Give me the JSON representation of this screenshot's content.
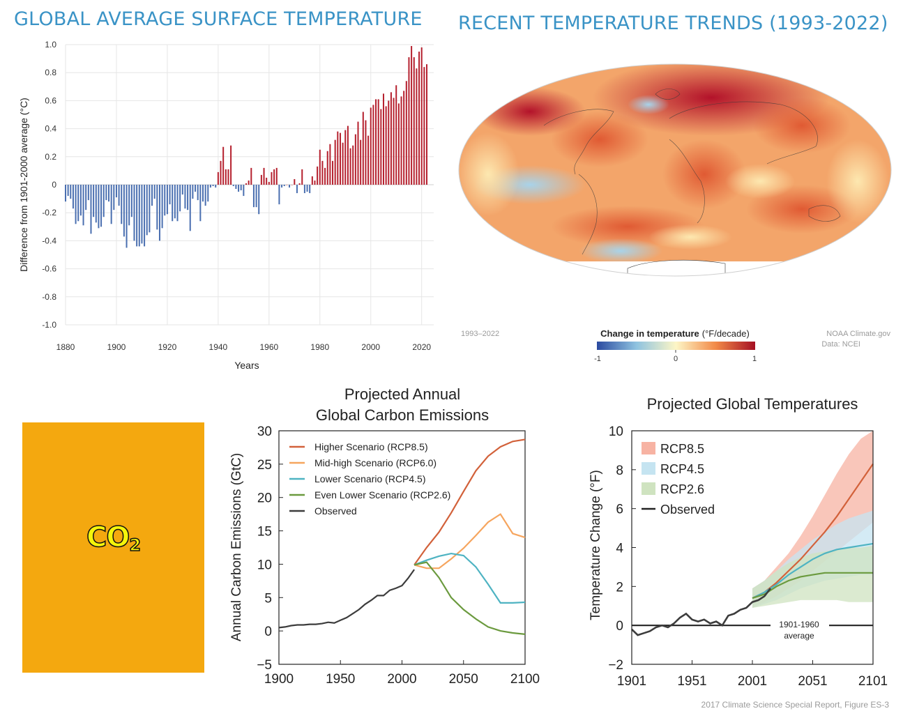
{
  "panel1": {
    "title": "GLOBAL AVERAGE SURFACE TEMPERATURE",
    "ylabel": "Difference from 1901-2000 average (°C)",
    "xlabel": "Years",
    "yticks": [
      "1.0",
      "0.8",
      "0.6",
      "0.4",
      "0.2",
      "0",
      "-0.2",
      "-0.4",
      "-0.6",
      "-0.8",
      "-1.0"
    ],
    "xticks": [
      "1880",
      "1900",
      "1920",
      "1940",
      "1960",
      "1980",
      "2000",
      "2020"
    ],
    "colors": {
      "positive": "#b5202e",
      "negative": "#4a6fb0"
    }
  },
  "panel2": {
    "title": "RECENT TEMPERATURE TRENDS (1993-2022)",
    "period": "1993–2022",
    "legend_title": "Change in temperature",
    "legend_unit": "(°F/decade)",
    "legend_min": "-1",
    "legend_mid": "0",
    "legend_max": "1",
    "credit1": "NOAA Climate.gov",
    "credit2": "Data: NCEI"
  },
  "co2": {
    "label": "CO",
    "subscript": "2",
    "background": "#f4a80f"
  },
  "panel3": {
    "title_line1": "Projected Annual",
    "title_line2": "Global Carbon Emissions",
    "ylabel": "Annual Carbon Emissions (GtC)",
    "yticks": [
      "30",
      "25",
      "20",
      "15",
      "10",
      "5",
      "0",
      "−5"
    ],
    "xticks": [
      "1900",
      "1950",
      "2000",
      "2050",
      "2100"
    ],
    "legend": [
      "Higher Scenario (RCP8.5)",
      "Mid-high Scenario (RCP6.0)",
      "Lower Scenario (RCP4.5)",
      "Even Lower Scenario (RCP2.6)",
      "Observed"
    ]
  },
  "panel4": {
    "title": "Projected Global Temperatures",
    "ylabel": "Temperature Change (°F)",
    "yticks": [
      "10",
      "8",
      "6",
      "4",
      "2",
      "0",
      "−2"
    ],
    "xticks": [
      "1901",
      "1951",
      "2001",
      "2051",
      "2101"
    ],
    "legend": [
      "RCP8.5",
      "RCP4.5",
      "RCP2.6",
      "Observed"
    ],
    "baseline_label_1": "1901-1960",
    "baseline_label_2": "average",
    "source": "2017 Climate Science Special Report, Figure ES-3"
  },
  "chart_data": [
    {
      "type": "bar",
      "title": "GLOBAL AVERAGE SURFACE TEMPERATURE",
      "xlabel": "Years",
      "ylabel": "Difference from 1901-2000 average (°C)",
      "ylim": [
        -1.0,
        1.0
      ],
      "xlim": [
        1880,
        2022
      ],
      "x_start": 1880,
      "values": [
        -0.12,
        -0.08,
        -0.1,
        -0.17,
        -0.28,
        -0.26,
        -0.22,
        -0.29,
        -0.18,
        -0.11,
        -0.35,
        -0.23,
        -0.27,
        -0.31,
        -0.3,
        -0.23,
        -0.11,
        -0.12,
        -0.28,
        -0.18,
        -0.09,
        -0.15,
        -0.28,
        -0.37,
        -0.45,
        -0.29,
        -0.23,
        -0.4,
        -0.44,
        -0.44,
        -0.42,
        -0.44,
        -0.36,
        -0.34,
        -0.15,
        -0.1,
        -0.32,
        -0.4,
        -0.31,
        -0.22,
        -0.21,
        -0.14,
        -0.26,
        -0.24,
        -0.26,
        -0.19,
        -0.07,
        -0.17,
        -0.18,
        -0.33,
        -0.1,
        -0.05,
        -0.11,
        -0.26,
        -0.12,
        -0.15,
        -0.12,
        -0.02,
        -0.01,
        -0.02,
        0.09,
        0.17,
        0.27,
        0.11,
        0.11,
        0.28,
        -0.01,
        -0.03,
        -0.05,
        -0.04,
        -0.08,
        0.01,
        0.03,
        0.12,
        -0.16,
        -0.16,
        -0.21,
        0.07,
        0.12,
        0.05,
        0.02,
        0.09,
        0.11,
        0.12,
        -0.14,
        -0.02,
        -0.01,
        0.0,
        -0.02,
        0.0,
        0.04,
        -0.06,
        0.01,
        0.11,
        -0.06,
        -0.05,
        -0.06,
        0.06,
        0.03,
        0.13,
        0.25,
        0.17,
        0.12,
        0.24,
        0.29,
        0.17,
        0.32,
        0.38,
        0.37,
        0.3,
        0.39,
        0.42,
        0.26,
        0.28,
        0.36,
        0.45,
        0.32,
        0.52,
        0.46,
        0.35,
        0.55,
        0.57,
        0.61,
        0.61,
        0.54,
        0.65,
        0.56,
        0.6,
        0.66,
        0.62,
        0.71,
        0.58,
        0.63,
        0.67,
        0.74,
        0.91,
        0.99,
        0.91,
        0.83,
        0.95,
        0.98,
        0.84,
        0.86
      ]
    },
    {
      "type": "line",
      "title": "Projected Annual Global Carbon Emissions",
      "xlabel": "",
      "ylabel": "Annual Carbon Emissions (GtC)",
      "xlim": [
        1900,
        2100
      ],
      "ylim": [
        -5,
        30
      ],
      "series": [
        {
          "name": "Observed",
          "color": "#3c3c3c",
          "x": [
            1900,
            1905,
            1910,
            1915,
            1920,
            1925,
            1930,
            1935,
            1940,
            1945,
            1950,
            1955,
            1960,
            1965,
            1970,
            1975,
            1980,
            1985,
            1990,
            1995,
            2000,
            2005,
            2010
          ],
          "y": [
            0.5,
            0.6,
            0.8,
            0.9,
            0.9,
            1.0,
            1.0,
            1.1,
            1.3,
            1.2,
            1.6,
            2.0,
            2.6,
            3.2,
            4.0,
            4.6,
            5.3,
            5.3,
            6.1,
            6.4,
            6.8,
            7.9,
            9.2
          ]
        },
        {
          "name": "Higher Scenario (RCP8.5)",
          "color": "#d2613a",
          "x": [
            2010,
            2020,
            2030,
            2040,
            2050,
            2060,
            2070,
            2080,
            2090,
            2100
          ],
          "y": [
            9.9,
            12.5,
            14.8,
            17.7,
            20.9,
            24.0,
            26.2,
            27.6,
            28.4,
            28.7
          ]
        },
        {
          "name": "Mid-high Scenario (RCP6.0)",
          "color": "#f6a55e",
          "x": [
            2010,
            2020,
            2030,
            2040,
            2050,
            2060,
            2070,
            2080,
            2090,
            2100
          ],
          "y": [
            9.9,
            9.4,
            9.4,
            10.8,
            12.4,
            14.3,
            16.3,
            17.5,
            14.6,
            14.0
          ]
        },
        {
          "name": "Lower Scenario (RCP4.5)",
          "color": "#4eb3c2",
          "x": [
            2010,
            2020,
            2030,
            2040,
            2050,
            2060,
            2070,
            2080,
            2090,
            2100
          ],
          "y": [
            9.9,
            10.6,
            11.2,
            11.6,
            11.3,
            9.6,
            7.0,
            4.2,
            4.2,
            4.3
          ]
        },
        {
          "name": "Even Lower Scenario (RCP2.6)",
          "color": "#6b9a3e",
          "x": [
            2010,
            2020,
            2030,
            2040,
            2050,
            2060,
            2070,
            2080,
            2090,
            2100
          ],
          "y": [
            9.9,
            10.3,
            8.0,
            5.0,
            3.2,
            1.8,
            0.6,
            0.0,
            -0.3,
            -0.5
          ]
        }
      ]
    },
    {
      "type": "area",
      "title": "Projected Global Temperatures",
      "xlabel": "",
      "ylabel": "Temperature Change (°F)",
      "xlim": [
        1901,
        2101
      ],
      "ylim": [
        -2,
        10
      ],
      "baseline": 0,
      "series": [
        {
          "name": "RCP8.5",
          "color": "#d2613a",
          "band_color": "#f7b3a3",
          "x": [
            2001,
            2011,
            2021,
            2031,
            2041,
            2051,
            2061,
            2071,
            2081,
            2091,
            2101
          ],
          "y": [
            1.4,
            1.7,
            2.2,
            2.8,
            3.4,
            4.1,
            4.8,
            5.6,
            6.5,
            7.4,
            8.3
          ],
          "low": [
            0.9,
            1.2,
            1.5,
            1.9,
            2.3,
            2.8,
            3.3,
            3.8,
            4.3,
            4.8,
            5.3
          ],
          "high": [
            1.9,
            2.3,
            3.0,
            3.7,
            4.6,
            5.6,
            6.7,
            7.8,
            8.8,
            9.6,
            10.0
          ]
        },
        {
          "name": "RCP4.5",
          "color": "#4eb3c2",
          "band_color": "#c5e4f1",
          "x": [
            2001,
            2011,
            2021,
            2031,
            2041,
            2051,
            2061,
            2071,
            2081,
            2091,
            2101
          ],
          "y": [
            1.4,
            1.7,
            2.1,
            2.6,
            3.0,
            3.4,
            3.7,
            3.9,
            4.0,
            4.1,
            4.2
          ],
          "low": [
            0.9,
            1.1,
            1.3,
            1.6,
            1.9,
            2.1,
            2.3,
            2.4,
            2.5,
            2.6,
            2.6
          ],
          "high": [
            1.9,
            2.3,
            2.8,
            3.4,
            3.9,
            4.4,
            4.8,
            5.2,
            5.5,
            5.7,
            5.9
          ]
        },
        {
          "name": "RCP2.6",
          "color": "#6b9a3e",
          "band_color": "#cfe3c0",
          "x": [
            2001,
            2011,
            2021,
            2031,
            2041,
            2051,
            2061,
            2071,
            2081,
            2091,
            2101
          ],
          "y": [
            1.4,
            1.6,
            2.0,
            2.3,
            2.5,
            2.6,
            2.7,
            2.7,
            2.7,
            2.7,
            2.7
          ],
          "low": [
            0.9,
            1.0,
            1.1,
            1.2,
            1.3,
            1.3,
            1.3,
            1.3,
            1.2,
            1.2,
            1.2
          ],
          "high": [
            1.9,
            2.3,
            2.8,
            3.2,
            3.5,
            3.7,
            3.8,
            3.9,
            4.0,
            4.0,
            4.1
          ]
        },
        {
          "name": "Observed",
          "color": "#3c3c3c",
          "x": [
            1901,
            1906,
            1911,
            1916,
            1921,
            1926,
            1931,
            1936,
            1941,
            1946,
            1951,
            1956,
            1961,
            1966,
            1971,
            1976,
            1981,
            1986,
            1991,
            1996,
            2001,
            2006,
            2011,
            2016
          ],
          "y": [
            -0.2,
            -0.5,
            -0.4,
            -0.3,
            -0.1,
            0.0,
            -0.1,
            0.1,
            0.4,
            0.6,
            0.3,
            0.2,
            0.3,
            0.1,
            0.2,
            0.0,
            0.5,
            0.6,
            0.8,
            0.9,
            1.2,
            1.3,
            1.5,
            1.9
          ]
        }
      ]
    }
  ]
}
